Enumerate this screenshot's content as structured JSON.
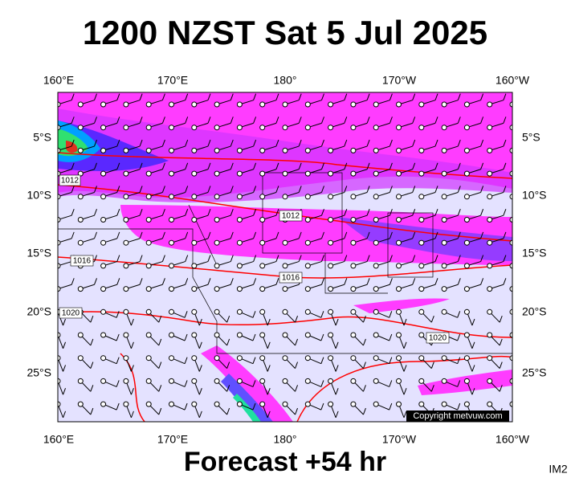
{
  "title": "1200 NZST Sat 5 Jul 2025",
  "longitude_labels": [
    "160°E",
    "170°E",
    "180°",
    "170°W",
    "160°W"
  ],
  "latitude_labels": [
    "5°S",
    "10°S",
    "15°S",
    "20°S",
    "25°S"
  ],
  "isobar_labels": [
    "1012",
    "1012",
    "1016",
    "1016",
    "1020",
    "1020"
  ],
  "copyright": "Copyright metvuw.com",
  "footer": "Forecast +54 hr",
  "image_id": "IM2"
}
